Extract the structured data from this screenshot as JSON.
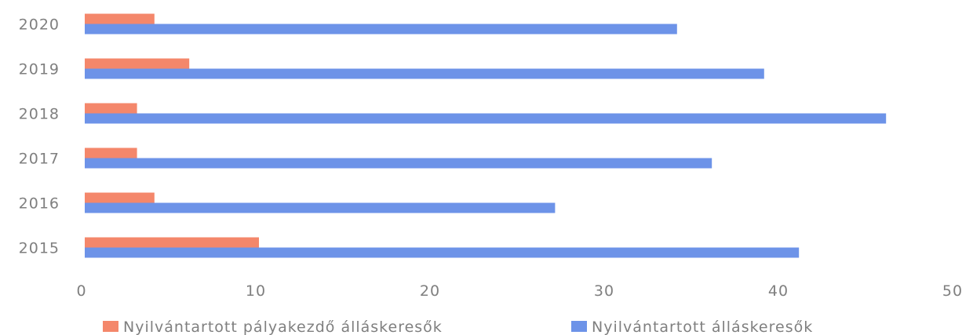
{
  "chart_data": {
    "type": "bar",
    "orientation": "horizontal",
    "categories": [
      "2015",
      "2016",
      "2017",
      "2018",
      "2019",
      "2020"
    ],
    "series": [
      {
        "name": "Nyilvántartott pályakezdő álláskeresők",
        "color": "#f4876b",
        "values": [
          10,
          4,
          3,
          3,
          6,
          4
        ]
      },
      {
        "name": "Nyilvántartott álláskeresők",
        "color": "#6d93e8",
        "values": [
          41,
          27,
          36,
          46,
          39,
          34
        ]
      }
    ],
    "xlim": [
      0,
      50
    ],
    "xticks": [
      "0",
      "10",
      "20",
      "30",
      "40",
      "50"
    ],
    "grid": false,
    "legend_position": "bottom"
  }
}
